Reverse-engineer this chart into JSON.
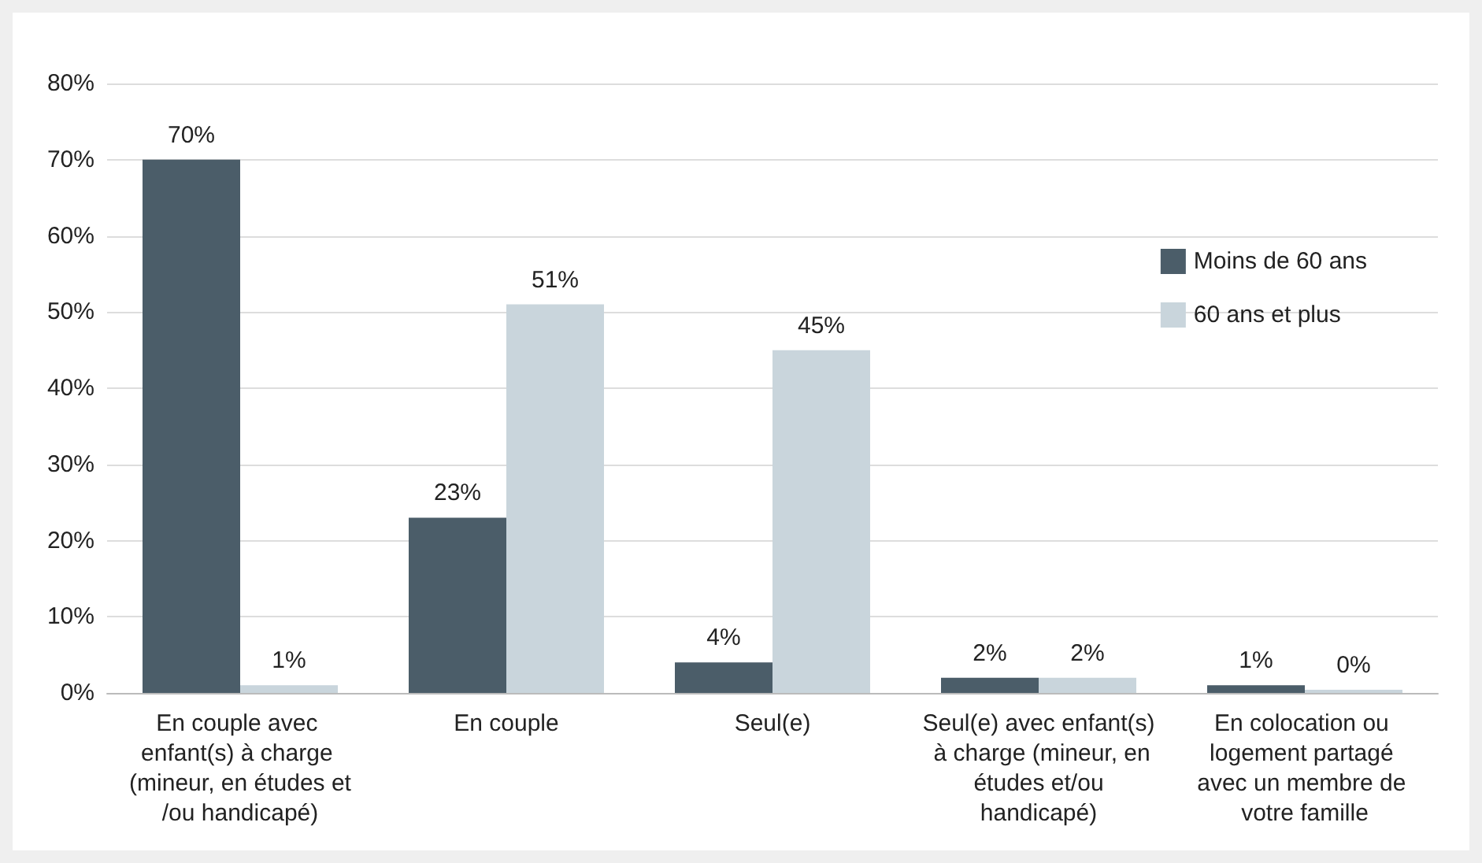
{
  "chart_data": {
    "type": "bar",
    "categories": [
      "En couple avec enfant(s) à charge (mineur, en études et/ou handicapé)",
      "En couple",
      "Seul(e)",
      "Seul(e) avec enfant(s) à charge (mineur, en études et/ou handicapé)",
      "En colocation ou logement partagé avec un membre de votre famille"
    ],
    "series": [
      {
        "name": "Moins de 60 ans",
        "color": "#4b5d69",
        "values": [
          70,
          23,
          4,
          2,
          1
        ],
        "value_labels": [
          "70%",
          "23%",
          "4%",
          "2%",
          "1%"
        ]
      },
      {
        "name": "60 ans et plus",
        "color": "#c9d5dc",
        "values": [
          1,
          51,
          45,
          2,
          0
        ],
        "value_labels": [
          "1%",
          "51%",
          "45%",
          "2%",
          "0%"
        ]
      }
    ],
    "ylim": [
      0,
      80
    ],
    "yticks": [
      {
        "value": 0,
        "label": "0%"
      },
      {
        "value": 10,
        "label": "10%"
      },
      {
        "value": 20,
        "label": "20%"
      },
      {
        "value": 30,
        "label": "30%"
      },
      {
        "value": 40,
        "label": "40%"
      },
      {
        "value": 50,
        "label": "50%"
      },
      {
        "value": 60,
        "label": "60%"
      },
      {
        "value": 70,
        "label": "70%"
      },
      {
        "value": 80,
        "label": "80%"
      }
    ],
    "grid": "y",
    "legend": "right"
  }
}
